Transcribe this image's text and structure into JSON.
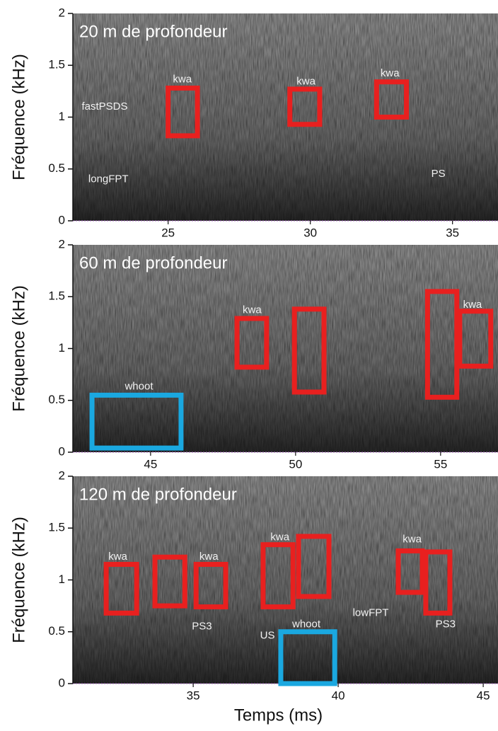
{
  "chart_data": [
    {
      "type": "spectrogram",
      "title": "20 m de profondeur",
      "ylabel": "Fréquence (kHz)",
      "xlim": [
        21.65,
        36.6
      ],
      "ylim": [
        0,
        2
      ],
      "xticks": [
        25,
        30,
        35
      ],
      "yticks": [
        0,
        0.5,
        1,
        1.5,
        2
      ],
      "annotations": [
        {
          "text": "kwa",
          "x": 25.5,
          "y": 1.36
        },
        {
          "text": "kwa",
          "x": 29.85,
          "y": 1.34
        },
        {
          "text": "kwa",
          "x": 32.8,
          "y": 1.42
        },
        {
          "text": "fastPSDS",
          "x": 22.77,
          "y": 1.1
        },
        {
          "text": "longFPT",
          "x": 22.9,
          "y": 0.4
        },
        {
          "text": "PS",
          "x": 34.5,
          "y": 0.45
        }
      ],
      "boxes": [
        {
          "x": [
            25,
            26.03
          ],
          "y": [
            0.82,
            1.28
          ],
          "color": "#e8201f"
        },
        {
          "x": [
            29.28,
            30.33
          ],
          "y": [
            0.93,
            1.27
          ],
          "color": "#e8201f"
        },
        {
          "x": [
            32.33,
            33.38
          ],
          "y": [
            1.0,
            1.34
          ],
          "color": "#e8201f"
        }
      ]
    },
    {
      "type": "spectrogram",
      "title": "60 m de profondeur",
      "ylabel": "Fréquence (kHz)",
      "xlim": [
        42.32,
        56.98
      ],
      "ylim": [
        0,
        2
      ],
      "xticks": [
        45,
        50,
        55
      ],
      "yticks": [
        0,
        0.5,
        1,
        1.5,
        2
      ],
      "annotations": [
        {
          "text": "kwa",
          "x": 48.5,
          "y": 1.37
        },
        {
          "text": "kwa",
          "x": 56.1,
          "y": 1.42
        },
        {
          "text": "whoot",
          "x": 44.6,
          "y": 0.63
        }
      ],
      "boxes": [
        {
          "x": [
            47.98,
            49.0
          ],
          "y": [
            0.82,
            1.29
          ],
          "color": "#e8201f"
        },
        {
          "x": [
            49.96,
            50.98
          ],
          "y": [
            0.58,
            1.38
          ],
          "color": "#e8201f"
        },
        {
          "x": [
            54.55,
            55.56
          ],
          "y": [
            0.53,
            1.55
          ],
          "color": "#e8201f"
        },
        {
          "x": [
            55.66,
            56.73
          ],
          "y": [
            0.83,
            1.36
          ],
          "color": "#e8201f"
        },
        {
          "x": [
            42.98,
            46.05
          ],
          "y": [
            0.04,
            0.55
          ],
          "color": "#1aa8e0"
        }
      ]
    },
    {
      "type": "spectrogram",
      "title": "120 m de profondeur",
      "ylabel": "Fréquence (kHz)",
      "xlabel": "Temps (ms)",
      "xlim": [
        30.85,
        45.51
      ],
      "ylim": [
        0,
        2
      ],
      "xticks": [
        35,
        40,
        45
      ],
      "yticks": [
        0,
        0.5,
        1,
        1.5,
        2
      ],
      "annotations": [
        {
          "text": "kwa",
          "x": 32.4,
          "y": 1.22
        },
        {
          "text": "kwa",
          "x": 35.54,
          "y": 1.22
        },
        {
          "text": "kwa",
          "x": 37.99,
          "y": 1.41
        },
        {
          "text": "kwa",
          "x": 42.55,
          "y": 1.39
        },
        {
          "text": "PS3",
          "x": 35.3,
          "y": 0.55
        },
        {
          "text": "PS3",
          "x": 43.7,
          "y": 0.57
        },
        {
          "text": "US",
          "x": 37.56,
          "y": 0.46
        },
        {
          "text": "whoot",
          "x": 38.9,
          "y": 0.57
        },
        {
          "text": "lowFPT",
          "x": 41.12,
          "y": 0.68
        }
      ],
      "boxes": [
        {
          "x": [
            32.0,
            33.05
          ],
          "y": [
            0.68,
            1.15
          ],
          "color": "#e8201f"
        },
        {
          "x": [
            33.68,
            34.71
          ],
          "y": [
            0.75,
            1.22
          ],
          "color": "#e8201f"
        },
        {
          "x": [
            35.1,
            36.12
          ],
          "y": [
            0.74,
            1.15
          ],
          "color": "#e8201f"
        },
        {
          "x": [
            37.41,
            38.44
          ],
          "y": [
            0.74,
            1.34
          ],
          "color": "#e8201f"
        },
        {
          "x": [
            38.63,
            39.68
          ],
          "y": [
            0.84,
            1.42
          ],
          "color": "#e8201f"
        },
        {
          "x": [
            42.07,
            42.9
          ],
          "y": [
            0.88,
            1.28
          ],
          "color": "#e8201f"
        },
        {
          "x": [
            43.02,
            43.85
          ],
          "y": [
            0.68,
            1.27
          ],
          "color": "#e8201f"
        },
        {
          "x": [
            38.02,
            39.88
          ],
          "y": [
            0.0,
            0.5
          ],
          "color": "#1aa8e0"
        }
      ]
    }
  ]
}
